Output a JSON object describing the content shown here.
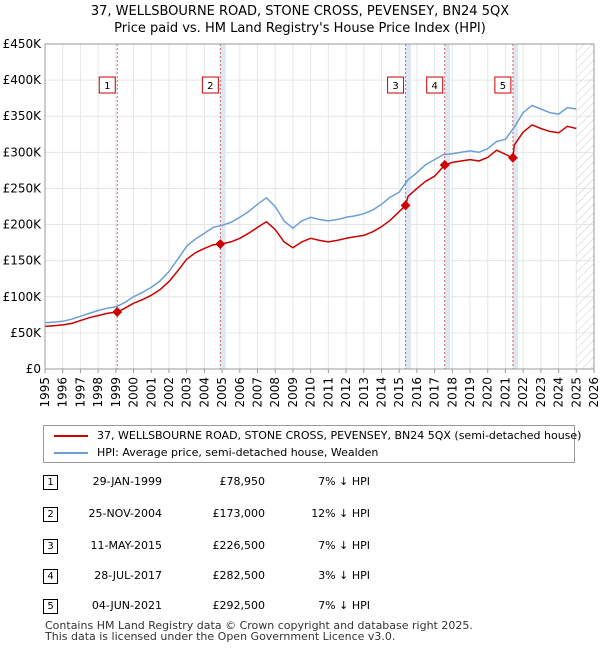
{
  "title": {
    "line1": "37, WELLSBOURNE ROAD, STONE CROSS, PEVENSEY, BN24 5QX",
    "line2": "Price paid vs. HM Land Registry's House Price Index (HPI)"
  },
  "colors": {
    "price_line": "#cc0000",
    "hpi_line": "#6a9fd4",
    "marker_box": "#cc0000",
    "shade": "#dde7f3",
    "future_hatch": "#cccccc"
  },
  "legend": {
    "price_label": "37, WELLSBOURNE ROAD, STONE CROSS, PEVENSEY, BN24 5QX (semi-detached house)",
    "hpi_label": "HPI: Average price, semi-detached house, Wealden"
  },
  "transactions": [
    {
      "num": "1",
      "date": "29-JAN-1999",
      "price": "£78,950",
      "hpi_diff": "7% ↓ HPI"
    },
    {
      "num": "2",
      "date": "25-NOV-2004",
      "price": "£173,000",
      "hpi_diff": "12% ↓ HPI"
    },
    {
      "num": "3",
      "date": "11-MAY-2015",
      "price": "£226,500",
      "hpi_diff": "7% ↓ HPI"
    },
    {
      "num": "4",
      "date": "28-JUL-2017",
      "price": "£282,500",
      "hpi_diff": "3% ↓ HPI"
    },
    {
      "num": "5",
      "date": "04-JUN-2021",
      "price": "£292,500",
      "hpi_diff": "7% ↓ HPI"
    }
  ],
  "footer": {
    "line1": "Contains HM Land Registry data © Crown copyright and database right 2025.",
    "line2": "This data is licensed under the Open Government Licence v3.0."
  },
  "chart_data": {
    "type": "line",
    "title": "37, WELLSBOURNE ROAD, STONE CROSS, PEVENSEY, BN24 5QX — Price paid vs. HM Land Registry's House Price Index (HPI)",
    "xlabel": "",
    "ylabel": "",
    "xlim": [
      1995,
      2026
    ],
    "ylim": [
      0,
      450000
    ],
    "y_ticks": [
      0,
      50000,
      100000,
      150000,
      200000,
      250000,
      300000,
      350000,
      400000,
      450000
    ],
    "y_tick_labels": [
      "£0",
      "£50K",
      "£100K",
      "£150K",
      "£200K",
      "£250K",
      "£300K",
      "£350K",
      "£400K",
      "£450K"
    ],
    "x_ticks": [
      1995,
      1996,
      1997,
      1998,
      1999,
      2000,
      2001,
      2002,
      2003,
      2004,
      2005,
      2006,
      2007,
      2008,
      2009,
      2010,
      2011,
      2012,
      2013,
      2014,
      2015,
      2016,
      2017,
      2018,
      2019,
      2020,
      2021,
      2022,
      2023,
      2024,
      2025,
      2026
    ],
    "x_tick_labels": [
      "1995",
      "1996",
      "1997",
      "1998",
      "1999",
      "2000",
      "2001",
      "2002",
      "2003",
      "2004",
      "2005",
      "2006",
      "2007",
      "2008",
      "2009",
      "2010",
      "2011",
      "2012",
      "2013",
      "2014",
      "2015",
      "2016",
      "2017",
      "2018",
      "2019",
      "2020",
      "2021",
      "2022",
      "2023",
      "2024",
      "2025",
      "2026"
    ],
    "future_from": 2025.0,
    "sales": [
      {
        "label": "1",
        "x": 1999.08,
        "y": 78950
      },
      {
        "label": "2",
        "x": 2004.9,
        "y": 173000
      },
      {
        "label": "3",
        "x": 2015.36,
        "y": 226500
      },
      {
        "label": "4",
        "x": 2017.57,
        "y": 282500
      },
      {
        "label": "5",
        "x": 2021.42,
        "y": 292500
      }
    ],
    "shaded_spans": [
      [
        2004.9,
        2005.2
      ],
      [
        2015.36,
        2015.66
      ],
      [
        2017.57,
        2017.87
      ],
      [
        2021.42,
        2021.72
      ]
    ],
    "series": [
      {
        "name": "HPI: Average price, semi-detached house, Wealden",
        "color": "#6a9fd4",
        "x": [
          1995,
          1995.5,
          1996,
          1996.5,
          1997,
          1997.5,
          1998,
          1998.5,
          1999,
          1999.5,
          2000,
          2000.5,
          2001,
          2001.5,
          2002,
          2002.5,
          2003,
          2003.5,
          2004,
          2004.5,
          2005,
          2005.5,
          2006,
          2006.5,
          2007,
          2007.5,
          2008,
          2008.5,
          2009,
          2009.5,
          2010,
          2010.5,
          2011,
          2011.5,
          2012,
          2012.5,
          2013,
          2013.5,
          2014,
          2014.5,
          2015,
          2015.5,
          2016,
          2016.5,
          2017,
          2017.5,
          2018,
          2018.5,
          2019,
          2019.5,
          2020,
          2020.5,
          2021,
          2021.5,
          2022,
          2022.5,
          2023,
          2023.5,
          2024,
          2024.5,
          2025
        ],
        "values": [
          64000,
          65000,
          66000,
          69000,
          73000,
          77000,
          81000,
          84000,
          86000,
          92000,
          100000,
          106000,
          113000,
          122000,
          135000,
          152000,
          170000,
          180000,
          188000,
          196000,
          199000,
          203000,
          210000,
          218000,
          228000,
          237000,
          225000,
          205000,
          195000,
          205000,
          210000,
          207000,
          205000,
          207000,
          210000,
          212000,
          215000,
          220000,
          228000,
          238000,
          245000,
          262000,
          272000,
          283000,
          290000,
          297000,
          298000,
          300000,
          302000,
          300000,
          305000,
          315000,
          318000,
          335000,
          355000,
          365000,
          360000,
          355000,
          353000,
          362000,
          360000
        ]
      },
      {
        "name": "37, WELLSBOURNE ROAD, STONE CROSS, PEVENSEY, BN24 5QX (semi-detached house)",
        "color": "#cc0000",
        "x": [
          1995,
          1995.5,
          1996,
          1996.5,
          1997,
          1997.5,
          1998,
          1998.5,
          1999.08,
          1999.5,
          2000,
          2000.5,
          2001,
          2001.5,
          2002,
          2002.5,
          2003,
          2003.5,
          2004,
          2004.5,
          2004.9,
          2005.5,
          2006,
          2006.5,
          2007,
          2007.5,
          2008,
          2008.5,
          2009,
          2009.5,
          2010,
          2010.5,
          2011,
          2011.5,
          2012,
          2012.5,
          2013,
          2013.5,
          2014,
          2014.5,
          2015.36,
          2015.5,
          2016,
          2016.5,
          2017,
          2017.57,
          2018,
          2018.5,
          2019,
          2019.5,
          2020,
          2020.5,
          2021.42,
          2021.5,
          2022,
          2022.5,
          2023,
          2023.5,
          2024,
          2024.5,
          2025
        ],
        "values": [
          59000,
          60000,
          61000,
          63000,
          67000,
          71000,
          74000,
          77000,
          78950,
          84000,
          91000,
          96000,
          102000,
          110000,
          121000,
          136000,
          152000,
          161000,
          167000,
          172000,
          173000,
          176000,
          181000,
          188000,
          196000,
          204000,
          193000,
          176000,
          168000,
          176000,
          181000,
          178000,
          176000,
          178000,
          181000,
          183000,
          185000,
          190000,
          197000,
          206000,
          226500,
          239000,
          250000,
          260000,
          267000,
          282500,
          286000,
          288000,
          290000,
          288000,
          293000,
          303000,
          292500,
          310000,
          328000,
          338000,
          333000,
          329000,
          327000,
          336000,
          333000
        ]
      }
    ]
  }
}
